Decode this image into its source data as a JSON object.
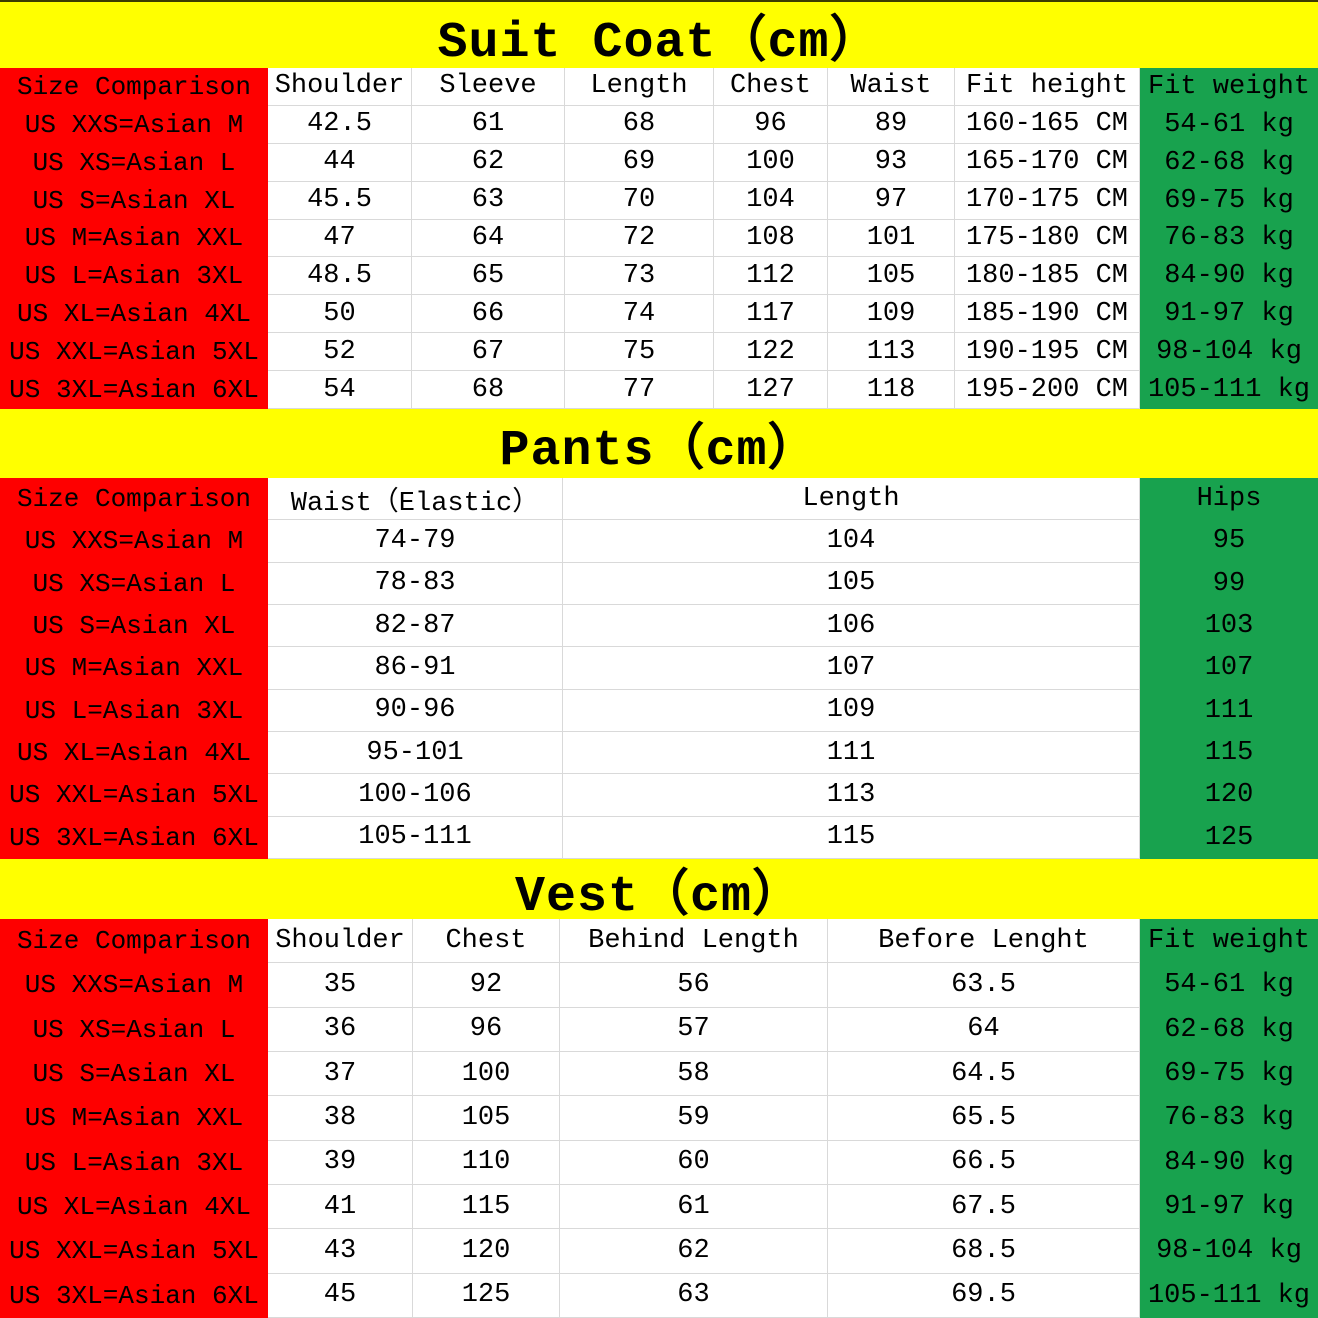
{
  "colors": {
    "title_band": "#ffff00",
    "size_column": "#fe0000",
    "weight_column": "#18a24e",
    "gridline": "#d9d9d9",
    "text": "#000000"
  },
  "sections": [
    {
      "name": "suit-coat",
      "title": "Suit Coat（cm）",
      "columns": [
        "Size Comparison",
        "Shoulder",
        "Sleeve",
        "Length",
        "Chest",
        "Waist",
        "Fit height",
        "Fit weight"
      ],
      "rows": [
        [
          "US XXS=Asian M",
          "42.5",
          "61",
          "68",
          "96",
          "89",
          "160-165 CM",
          "54-61 kg"
        ],
        [
          "US XS=Asian L",
          "44",
          "62",
          "69",
          "100",
          "93",
          "165-170 CM",
          "62-68 kg"
        ],
        [
          "US S=Asian XL",
          "45.5",
          "63",
          "70",
          "104",
          "97",
          "170-175 CM",
          "69-75 kg"
        ],
        [
          "US M=Asian XXL",
          "47",
          "64",
          "72",
          "108",
          "101",
          "175-180 CM",
          "76-83 kg"
        ],
        [
          "US L=Asian 3XL",
          "48.5",
          "65",
          "73",
          "112",
          "105",
          "180-185 CM",
          "84-90 kg"
        ],
        [
          "US XL=Asian 4XL",
          "50",
          "66",
          "74",
          "117",
          "109",
          "185-190 CM",
          "91-97 kg"
        ],
        [
          "US XXL=Asian 5XL",
          "52",
          "67",
          "75",
          "122",
          "113",
          "190-195 CM",
          "98-104 kg"
        ],
        [
          "US 3XL=Asian 6XL",
          "54",
          "68",
          "77",
          "127",
          "118",
          "195-200 CM",
          "105-111 kg"
        ]
      ]
    },
    {
      "name": "pants",
      "title": "Pants（cm）",
      "columns": [
        "Size Comparison",
        "Waist（Elastic）",
        "Length",
        "Hips"
      ],
      "rows": [
        [
          "US XXS=Asian M",
          "74-79",
          "104",
          "95"
        ],
        [
          "US XS=Asian L",
          "78-83",
          "105",
          "99"
        ],
        [
          "US S=Asian XL",
          "82-87",
          "106",
          "103"
        ],
        [
          "US M=Asian XXL",
          "86-91",
          "107",
          "107"
        ],
        [
          "US L=Asian 3XL",
          "90-96",
          "109",
          "111"
        ],
        [
          "US XL=Asian 4XL",
          "95-101",
          "111",
          "115"
        ],
        [
          "US XXL=Asian 5XL",
          "100-106",
          "113",
          "120"
        ],
        [
          "US 3XL=Asian 6XL",
          "105-111",
          "115",
          "125"
        ]
      ]
    },
    {
      "name": "vest",
      "title": "Vest（cm）",
      "columns": [
        "Size Comparison",
        "Shoulder",
        "Chest",
        "Behind Length",
        "Before Lenght",
        "Fit weight"
      ],
      "rows": [
        [
          "US XXS=Asian M",
          "35",
          "92",
          "56",
          "63.5",
          "54-61 kg"
        ],
        [
          "US XS=Asian L",
          "36",
          "96",
          "57",
          "64",
          "62-68 kg"
        ],
        [
          "US S=Asian XL",
          "37",
          "100",
          "58",
          "64.5",
          "69-75 kg"
        ],
        [
          "US M=Asian XXL",
          "38",
          "105",
          "59",
          "65.5",
          "76-83 kg"
        ],
        [
          "US L=Asian 3XL",
          "39",
          "110",
          "60",
          "66.5",
          "84-90 kg"
        ],
        [
          "US XL=Asian 4XL",
          "41",
          "115",
          "61",
          "67.5",
          "91-97 kg"
        ],
        [
          "US XXL=Asian 5XL",
          "43",
          "120",
          "62",
          "68.5",
          "98-104 kg"
        ],
        [
          "US 3XL=Asian 6XL",
          "45",
          "125",
          "63",
          "69.5",
          "105-111 kg"
        ]
      ]
    }
  ]
}
